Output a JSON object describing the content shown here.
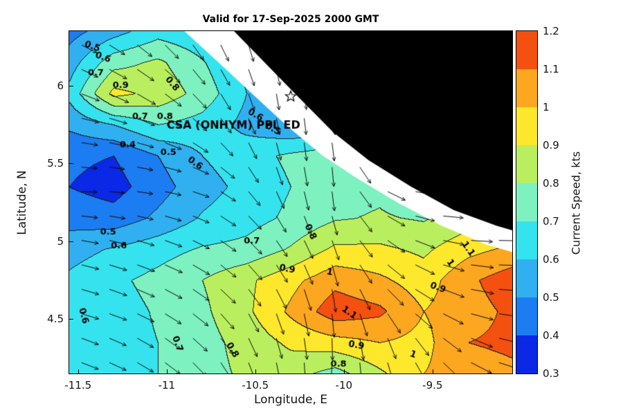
{
  "title": "Valid for 17-Sep-2025 2000 GMT",
  "overlay_text": "CSA (ONHYM) PPL ED",
  "axes": {
    "xlabel": "Longitude, E",
    "ylabel": "Latitude, N",
    "x_tick_values": [
      -11.5,
      -11,
      -10.5,
      -10,
      -9.5
    ],
    "x_tick_labels": [
      "-11.5",
      "-11",
      "-10.5",
      "-10",
      "-9.5"
    ],
    "y_tick_values": [
      4.5,
      5,
      5.5,
      6
    ],
    "y_tick_labels": [
      "4.5",
      "5",
      "5.5",
      "6"
    ]
  },
  "colorbar": {
    "label": "Current Speed, kts",
    "min": 0.3,
    "max": 1.2,
    "step": 0.1,
    "tick_values": [
      0.3,
      0.4,
      0.5,
      0.6,
      0.7,
      0.8,
      0.9,
      1,
      1.1,
      1.2
    ],
    "tick_labels": [
      "0.3",
      "0.4",
      "0.5",
      "0.6",
      "0.7",
      "0.8",
      "0.9",
      "1",
      "1.1",
      "1.2"
    ],
    "band_colors": [
      "#0a28e6",
      "#1c7cf2",
      "#30b0f0",
      "#35e3ee",
      "#7df2c0",
      "#b9ef5f",
      "#fde82b",
      "#fca71f",
      "#f4500f"
    ]
  },
  "chart_data": {
    "type": "heatmap",
    "subtype": "filled-contour-with-quiver",
    "units": "kts",
    "extent": {
      "lon_min": -11.55,
      "lon_max": -9.05,
      "lat_min": 4.15,
      "lat_max": 6.35
    },
    "lons": [
      -11.55,
      -11.3,
      -11.05,
      -10.8,
      -10.55,
      -10.3,
      -10.05,
      -9.8,
      -9.55,
      -9.3,
      -9.05
    ],
    "lats": [
      4.15,
      4.35,
      4.55,
      4.75,
      4.95,
      5.15,
      5.35,
      5.55,
      5.75,
      5.95,
      6.15,
      6.35
    ],
    "speed": [
      [
        0.62,
        0.66,
        0.7,
        0.76,
        0.82,
        0.84,
        0.76,
        0.88,
        1.0,
        1.05,
        1.08
      ],
      [
        0.61,
        0.66,
        0.7,
        0.76,
        0.84,
        0.92,
        0.96,
        1.0,
        0.97,
        1.1,
        1.12
      ],
      [
        0.6,
        0.66,
        0.71,
        0.78,
        0.88,
        1.02,
        1.16,
        1.12,
        1.0,
        1.06,
        1.12
      ],
      [
        0.62,
        0.68,
        0.73,
        0.8,
        0.88,
        0.97,
        1.07,
        1.02,
        0.95,
        1.08,
        1.16
      ],
      [
        0.56,
        0.61,
        0.66,
        0.71,
        0.73,
        0.81,
        0.92,
        0.92,
        0.88,
        0.97,
        1.02
      ],
      [
        0.46,
        0.44,
        0.52,
        0.61,
        0.66,
        0.72,
        0.79,
        0.81,
        0.79,
        0.85,
        0.9
      ],
      [
        0.4,
        0.36,
        0.46,
        0.56,
        0.63,
        0.7,
        0.76,
        0.78,
        0.72,
        0.75,
        0.8
      ],
      [
        0.42,
        0.4,
        0.5,
        0.6,
        0.66,
        0.72,
        0.76,
        0.72,
        0.7,
        0.72,
        0.75
      ],
      [
        0.52,
        0.6,
        0.7,
        0.66,
        0.57,
        0.5,
        0.54,
        0.62,
        0.66,
        0.7,
        0.72
      ],
      [
        0.63,
        0.93,
        0.87,
        0.76,
        0.6,
        0.42,
        0.47,
        0.6,
        0.65,
        0.7,
        0.72
      ],
      [
        0.55,
        0.76,
        0.82,
        0.71,
        0.57,
        0.49,
        0.55,
        0.62,
        0.66,
        0.7,
        0.72
      ],
      [
        0.46,
        0.56,
        0.66,
        0.62,
        0.56,
        0.52,
        0.56,
        0.62,
        0.66,
        0.7,
        0.72
      ]
    ],
    "direction_deg": [
      [
        -20,
        -25,
        -35,
        -50,
        -70,
        -85,
        -95,
        -80,
        -60,
        -30,
        -15
      ],
      [
        -20,
        -25,
        -35,
        -45,
        -65,
        -80,
        -90,
        -75,
        -50,
        -25,
        -10
      ],
      [
        -15,
        -20,
        -30,
        -40,
        -60,
        -75,
        -85,
        -60,
        -35,
        -15,
        -5
      ],
      [
        -15,
        -20,
        -25,
        -35,
        -50,
        -65,
        -80,
        -45,
        -25,
        -10,
        0
      ],
      [
        -10,
        -15,
        -20,
        -30,
        -45,
        -60,
        -70,
        -40,
        -20,
        -5,
        0
      ],
      [
        -5,
        -10,
        -15,
        -25,
        -45,
        -65,
        -75,
        -35,
        -10,
        0,
        0
      ],
      [
        0,
        -5,
        -10,
        -20,
        -50,
        -75,
        -85,
        -30,
        -5,
        0,
        0
      ],
      [
        -5,
        -10,
        -15,
        -30,
        -60,
        -80,
        -85,
        -35,
        -10,
        0,
        0
      ],
      [
        -10,
        -15,
        -25,
        -45,
        -65,
        -85,
        -80,
        -40,
        -15,
        0,
        0
      ],
      [
        -20,
        -25,
        -35,
        -50,
        -70,
        -85,
        -75,
        -45,
        -20,
        0,
        0
      ],
      [
        -25,
        -30,
        -40,
        -55,
        -70,
        -80,
        -70,
        -50,
        -25,
        0,
        0
      ],
      [
        -25,
        -35,
        -45,
        -60,
        -75,
        -80,
        -70,
        -55,
        -30,
        0,
        0
      ]
    ],
    "contour_line_color": "#202020",
    "arrow_color": "#0a0a0a",
    "arrows": {
      "lon_start": -11.48,
      "lat_start": 4.22,
      "dlon": 0.157,
      "dlat": 0.157
    },
    "coast_polygon": [
      [
        -10.9,
        6.35
      ],
      [
        -10.68,
        6.12
      ],
      [
        -10.52,
        5.95
      ],
      [
        -10.32,
        5.74
      ],
      [
        -10.12,
        5.55
      ],
      [
        -9.92,
        5.4
      ],
      [
        -9.7,
        5.25
      ],
      [
        -9.45,
        5.1
      ],
      [
        -9.2,
        4.98
      ],
      [
        -9.05,
        4.93
      ],
      [
        -9.05,
        6.35
      ]
    ],
    "land_polygon": [
      [
        -10.62,
        6.35
      ],
      [
        -10.44,
        6.14
      ],
      [
        -10.26,
        5.93
      ],
      [
        -10.06,
        5.7
      ],
      [
        -9.86,
        5.52
      ],
      [
        -9.62,
        5.35
      ],
      [
        -9.38,
        5.2
      ],
      [
        -9.14,
        5.1
      ],
      [
        -9.05,
        5.07
      ],
      [
        -9.05,
        6.35
      ]
    ],
    "land_color": "#000000",
    "coast_color": "#ffffff",
    "marker": {
      "shape": "star",
      "lon": -10.3,
      "lat": 5.93
    },
    "overlay": {
      "lon": -11.0,
      "lat": 5.74
    },
    "contour_labels": [
      [
        "0.5",
        -11.42,
        6.25,
        20
      ],
      [
        "0.6",
        -11.36,
        6.18,
        20
      ],
      [
        "0.7",
        -11.4,
        6.08,
        0
      ],
      [
        "0.9",
        -11.26,
        6.0,
        0
      ],
      [
        "0.8",
        -10.97,
        6.01,
        50
      ],
      [
        "0.7",
        -11.15,
        5.8,
        0
      ],
      [
        "0.8",
        -11.01,
        5.8,
        0
      ],
      [
        "0.6",
        -10.5,
        5.81,
        30
      ],
      [
        "0.5",
        -10.4,
        5.72,
        30
      ],
      [
        "0.4",
        -11.22,
        5.62,
        0
      ],
      [
        "0.5",
        -10.99,
        5.57,
        0
      ],
      [
        "0.6",
        -10.84,
        5.5,
        35
      ],
      [
        "0.5",
        -11.33,
        5.06,
        0
      ],
      [
        "0.6",
        -11.27,
        4.97,
        0
      ],
      [
        "0.7",
        -10.52,
        5.0,
        0
      ],
      [
        "0.8",
        -10.19,
        5.06,
        65
      ],
      [
        "0.9",
        -10.32,
        4.82,
        10
      ],
      [
        "1",
        -10.08,
        4.8,
        10
      ],
      [
        "1.1",
        -9.97,
        4.54,
        35
      ],
      [
        "0.9",
        -9.47,
        4.7,
        20
      ],
      [
        "1",
        -9.4,
        4.86,
        55
      ],
      [
        "1.1",
        -9.3,
        4.95,
        55
      ],
      [
        "0.6",
        -11.47,
        4.52,
        75
      ],
      [
        "0.7",
        -10.94,
        4.34,
        70
      ],
      [
        "0.8",
        -10.63,
        4.3,
        60
      ],
      [
        "0.9",
        -9.93,
        4.33,
        10
      ],
      [
        "0.8",
        -10.03,
        4.21,
        0
      ],
      [
        "1",
        -9.61,
        4.27,
        20
      ]
    ]
  }
}
